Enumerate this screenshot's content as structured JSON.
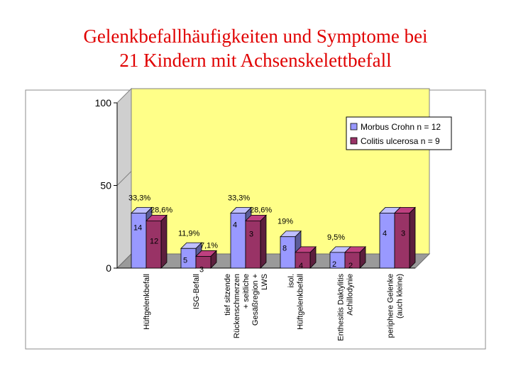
{
  "title": {
    "line1": "Gelenkbefallhäufigkeiten und Symptome bei",
    "line2": "21 Kindern mit Achsenskelettbefall"
  },
  "colors": {
    "title": "#e00000",
    "plot_background": "#ffff88",
    "series1": "#9999ff",
    "series2": "#993366"
  },
  "chart_data": {
    "type": "bar",
    "title": "Gelenkbefallhäufigkeiten und Symptome bei 21 Kindern mit Achsenskelettbefall",
    "xlabel": "",
    "ylabel": "",
    "ylim": [
      0,
      100
    ],
    "yticks": [
      "0",
      "50",
      "100"
    ],
    "grid": false,
    "legend_position": "right",
    "categories": [
      [
        "Hüftgelenkbefall"
      ],
      [
        "ISG-Befall"
      ],
      [
        "tief sitzende",
        "Rückenschmerzen",
        "+ seitliche",
        "Gesäßregion +",
        "LWS"
      ],
      [
        "isol.",
        "Hüftgelenkbefall"
      ],
      [
        "Enthesitis Daktylitis",
        "Achillodynie"
      ],
      [
        "periphere Gelenke",
        "(auch kleine)"
      ]
    ],
    "series": [
      {
        "name": "Morbus Crohn n = 12",
        "values": [
          33.3,
          11.9,
          33.3,
          19,
          9.5,
          33.3
        ],
        "counts": [
          "14",
          "5",
          "4",
          "8",
          "2",
          "4"
        ],
        "percent_labels": [
          "33,3%",
          "11,9%",
          "33,3%",
          "19%",
          "9,5%",
          ""
        ]
      },
      {
        "name": "Colitis ulcerosa n = 9",
        "values": [
          28.6,
          7.1,
          28.6,
          9.5,
          9.5,
          33.3
        ],
        "counts": [
          "12",
          "3",
          "3",
          "4",
          "2",
          "3"
        ],
        "percent_labels": [
          "28,6%",
          "7,1%",
          "28,6%",
          "",
          "",
          ""
        ]
      }
    ]
  }
}
